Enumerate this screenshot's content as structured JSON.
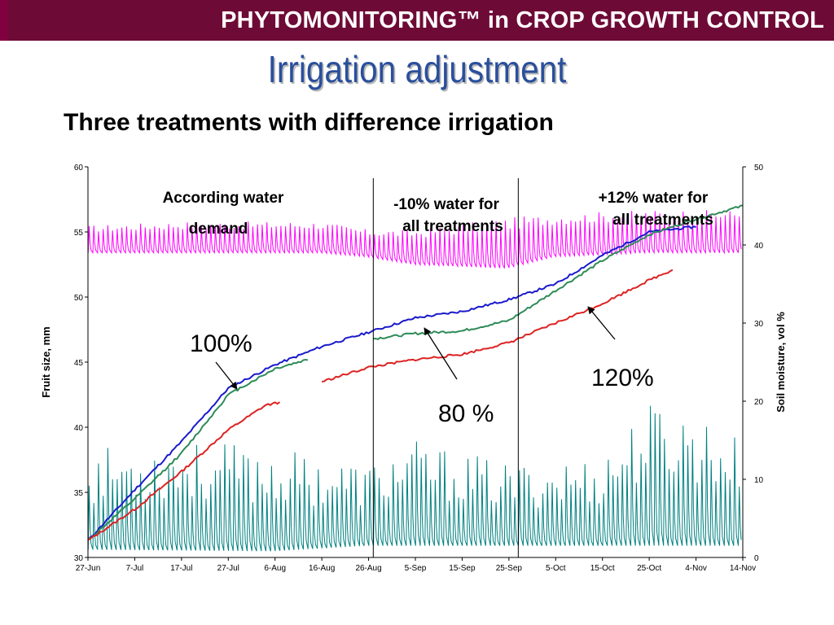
{
  "header": {
    "title": "PHYTOMONITORING™ in CROP GROWTH CONTROL"
  },
  "slide": {
    "title": "Irrigation adjustment",
    "subtitle": "Three treatments with difference irrigation"
  },
  "colors": {
    "header_bg": "#6e0a36",
    "title": "#2a4f9c",
    "fruit_100": "#1a1acc",
    "fruit_80": "#2e8b57",
    "fruit_120": "#dd2222",
    "fruit_extra": "#8a8a8a",
    "soil_moisture_a": "#ff00ff",
    "soil_moisture_b": "#008080"
  },
  "chart_data": {
    "type": "line",
    "xlabel": "",
    "ylabel": "Fruit size, mm",
    "y2label": "Soil moisture, vol %",
    "ylim": [
      30,
      60
    ],
    "y2lim": [
      0,
      50
    ],
    "yticks": [
      30,
      35,
      40,
      45,
      50,
      55,
      60
    ],
    "y2ticks": [
      0,
      10,
      20,
      30,
      40,
      50
    ],
    "x_tick_labels": [
      "27-Jun",
      "7-Jul",
      "17-Jul",
      "27-Jul",
      "6-Aug",
      "16-Aug",
      "26-Aug",
      "5-Sep",
      "15-Sep",
      "25-Sep",
      "5-Oct",
      "15-Oct",
      "25-Oct",
      "4-Nov",
      "14-Nov"
    ],
    "grid": false,
    "vertical_markers": [
      "27-Aug",
      "27-Sep"
    ],
    "series": [
      {
        "name": "100%",
        "axis": "left",
        "points": [
          [
            "27-Jun",
            31.3
          ],
          [
            "7-Jul",
            35.2
          ],
          [
            "17-Jul",
            38.9
          ],
          [
            "27-Jul",
            43.0
          ],
          [
            "6-Aug",
            44.8
          ],
          [
            "16-Aug",
            46.2
          ],
          [
            "26-Aug",
            47.3
          ],
          [
            "5-Sep",
            48.4
          ],
          [
            "15-Sep",
            48.9
          ],
          [
            "25-Sep",
            49.8
          ],
          [
            "5-Oct",
            51.0
          ],
          [
            "15-Oct",
            53.2
          ],
          [
            "25-Oct",
            55.0
          ],
          [
            "4-Nov",
            55.4
          ]
        ]
      },
      {
        "name": "80 %",
        "axis": "left",
        "points": [
          [
            "27-Jun",
            31.3
          ],
          [
            "7-Jul",
            34.5
          ],
          [
            "17-Jul",
            38.0
          ],
          [
            "27-Jul",
            42.5
          ],
          [
            "6-Aug",
            44.5
          ],
          [
            "13-Aug",
            45.2
          ]
        ],
        "points_after_break": [
          [
            "27-Aug",
            46.8
          ],
          [
            "5-Sep",
            47.2
          ],
          [
            "15-Sep",
            47.4
          ],
          [
            "25-Sep",
            48.2
          ],
          [
            "5-Oct",
            50.5
          ],
          [
            "15-Oct",
            52.8
          ],
          [
            "25-Oct",
            54.8
          ],
          [
            "4-Nov",
            56.0
          ],
          [
            "14-Nov",
            57.0
          ]
        ]
      },
      {
        "name": "120%",
        "axis": "left",
        "points": [
          [
            "27-Jun",
            31.3
          ],
          [
            "7-Jul",
            33.7
          ],
          [
            "17-Jul",
            36.6
          ],
          [
            "27-Jul",
            39.8
          ],
          [
            "4-Aug",
            41.7
          ],
          [
            "7-Aug",
            41.9
          ]
        ],
        "points_after_break": [
          [
            "16-Aug",
            43.5
          ],
          [
            "26-Aug",
            44.6
          ],
          [
            "5-Sep",
            45.2
          ],
          [
            "15-Sep",
            45.6
          ],
          [
            "25-Sep",
            46.5
          ],
          [
            "5-Oct",
            48.0
          ],
          [
            "15-Oct",
            49.5
          ],
          [
            "25-Oct",
            51.3
          ],
          [
            "30-Oct",
            52.1
          ]
        ]
      },
      {
        "name": "",
        "axis": "right",
        "style": "daily oscillation",
        "baseline": [
          [
            "27-Jun",
            39.0
          ],
          [
            "17-Jul",
            39.0
          ],
          [
            "16-Aug",
            39.0
          ],
          [
            "26-Aug",
            38.5
          ],
          [
            "5-Sep",
            37.5
          ],
          [
            "25-Sep",
            37.0
          ],
          [
            "5-Oct",
            38.5
          ],
          [
            "25-Oct",
            39.0
          ],
          [
            "14-Nov",
            39.0
          ]
        ],
        "daily_peak": [
          [
            "27-Jun",
            42.5
          ],
          [
            "17-Jul",
            43.0
          ],
          [
            "16-Aug",
            43.0
          ],
          [
            "26-Aug",
            42.0
          ],
          [
            "5-Sep",
            42.0
          ],
          [
            "25-Sep",
            43.5
          ],
          [
            "5-Oct",
            44.0
          ],
          [
            "25-Oct",
            44.5
          ],
          [
            "14-Nov",
            44.5
          ]
        ]
      },
      {
        "name": "",
        "axis": "right",
        "style": "daily oscillation",
        "baseline": [
          [
            "27-Jun",
            1.0
          ],
          [
            "6-Aug",
            0.8
          ],
          [
            "26-Aug",
            1.5
          ],
          [
            "25-Sep",
            1.5
          ],
          [
            "25-Oct",
            1.5
          ],
          [
            "14-Nov",
            1.5
          ]
        ],
        "daily_peak": [
          [
            "27-Jun",
            14.0
          ],
          [
            "17-Jul",
            15.0
          ],
          [
            "6-Aug",
            14.0
          ],
          [
            "26-Aug",
            12.0
          ],
          [
            "5-Sep",
            15.0
          ],
          [
            "25-Sep",
            12.0
          ],
          [
            "15-Oct",
            13.0
          ],
          [
            "25-Oct",
            20.0
          ],
          [
            "4-Nov",
            19.0
          ],
          [
            "14-Nov",
            15.0
          ]
        ]
      }
    ],
    "annotations": [
      {
        "lines": [
          "According water",
          "demand"
        ]
      },
      {
        "lines": [
          "-10% water for",
          "all treatments"
        ]
      },
      {
        "lines": [
          "+12% water for",
          "all treatments"
        ]
      },
      {
        "text": "100%"
      },
      {
        "text": "80 %"
      },
      {
        "text": "120%"
      }
    ]
  }
}
